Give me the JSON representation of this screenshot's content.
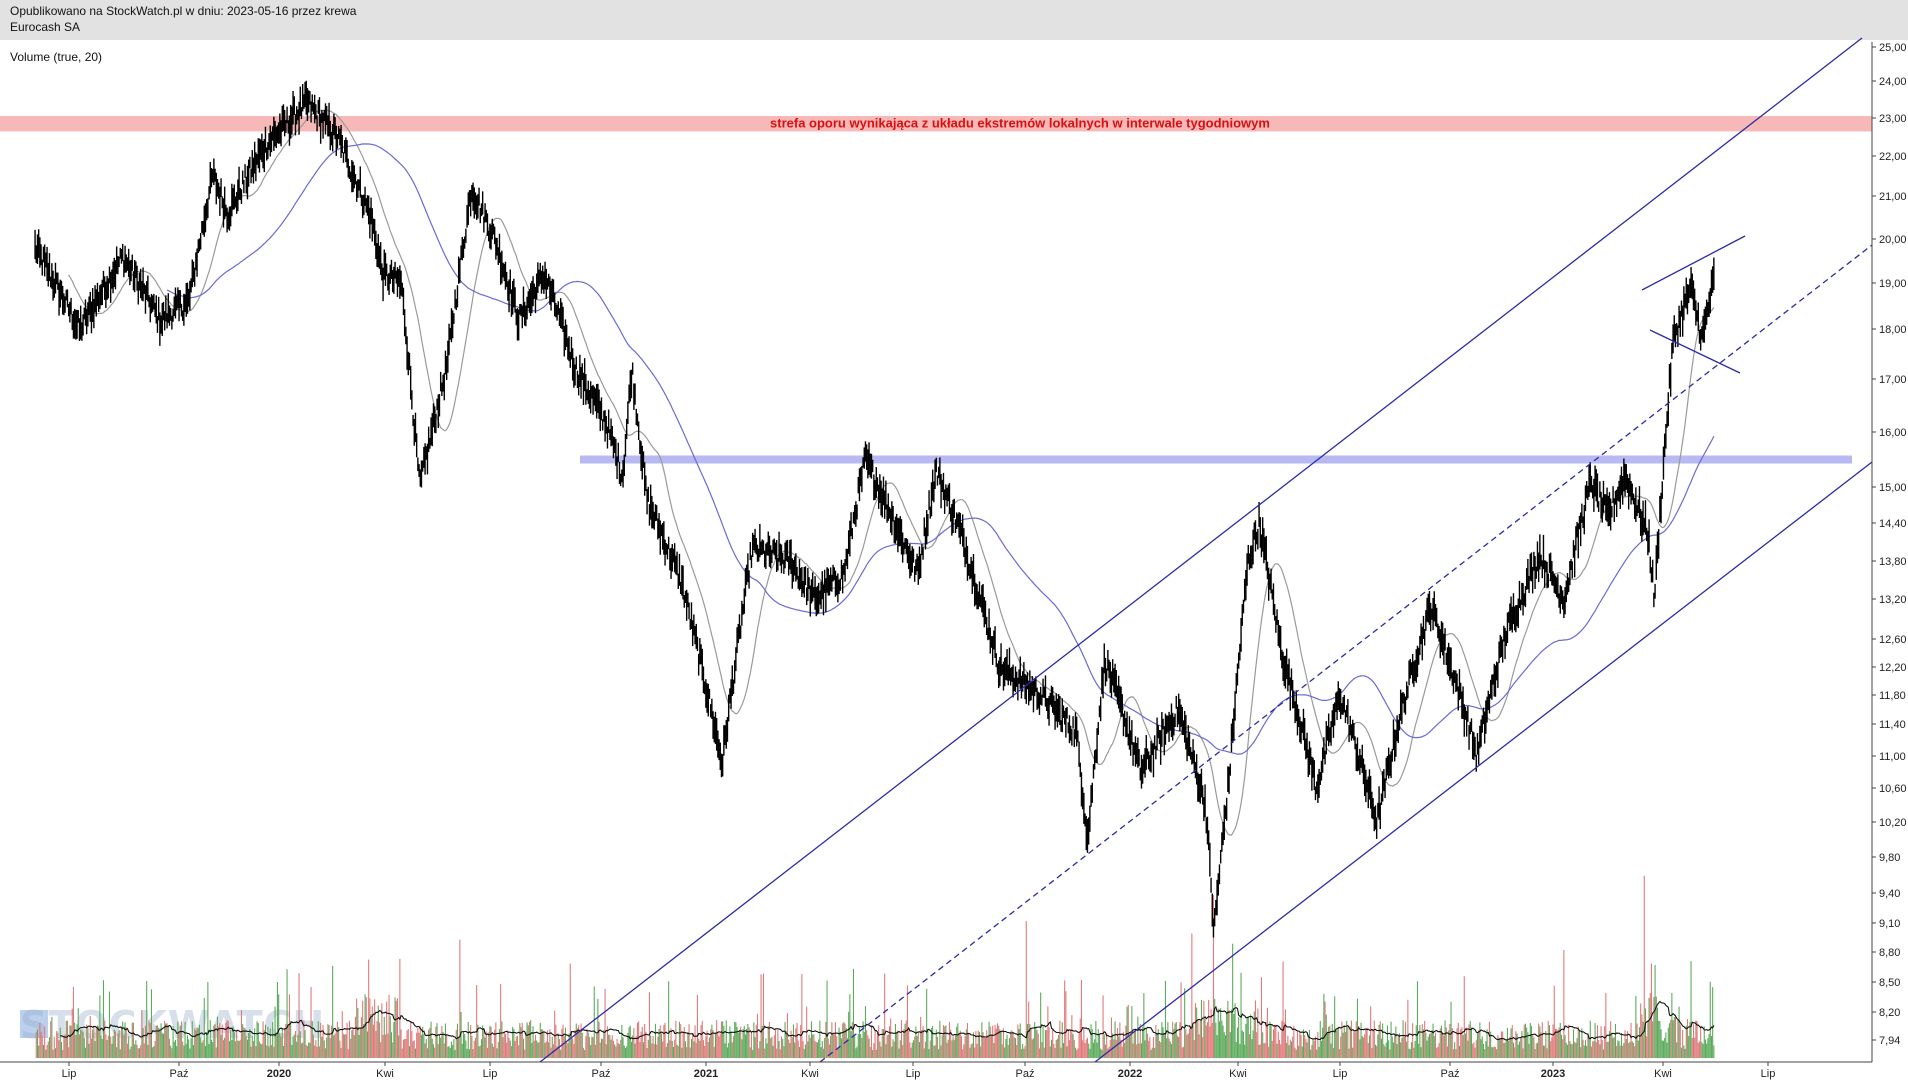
{
  "header": {
    "published_line": "Opublikowano na StockWatch.pl w dniu: 2023-05-16 przez krewa",
    "instrument": "Eurocash SA"
  },
  "indicator_label": "Volume (true, 20)",
  "watermark": "STOCKWATCH",
  "colors": {
    "up_volume": "#5cab5c",
    "down_volume": "#e07a7a",
    "trend_lines": "#2a2aa8",
    "resistance_zone": "#f7b8b8",
    "support_band": "#b8b8f2",
    "annotation_text": "#d81010",
    "ma_short": "#9a9a9a",
    "ma_long": "#6a6ad6"
  },
  "chart_data": {
    "type": "line",
    "instrument": "Eurocash SA",
    "y_axis_ticks": [
      "25,00",
      "24,00",
      "23,00",
      "22,00",
      "21,00",
      "20,00",
      "19,00",
      "18,00",
      "17,00",
      "16,00",
      "15,00",
      "14,40",
      "13,80",
      "13,20",
      "12,60",
      "12,20",
      "11,80",
      "11,40",
      "11,00",
      "10,60",
      "10,20",
      "9,80",
      "9,40",
      "9,10",
      "8,80",
      "8,50",
      "8,20",
      "7,94"
    ],
    "x_axis_ticks": [
      {
        "label": "Lip",
        "bold": false
      },
      {
        "label": "Paź",
        "bold": false
      },
      {
        "label": "2020",
        "bold": true
      },
      {
        "label": "Kwi",
        "bold": false
      },
      {
        "label": "Lip",
        "bold": false
      },
      {
        "label": "Paź",
        "bold": false
      },
      {
        "label": "2021",
        "bold": true
      },
      {
        "label": "Kwi",
        "bold": false
      },
      {
        "label": "Lip",
        "bold": false
      },
      {
        "label": "Paź",
        "bold": false
      },
      {
        "label": "2022",
        "bold": true
      },
      {
        "label": "Kwi",
        "bold": false
      },
      {
        "label": "Lip",
        "bold": false
      },
      {
        "label": "Paź",
        "bold": false
      },
      {
        "label": "2023",
        "bold": true
      },
      {
        "label": "Kwi",
        "bold": false
      },
      {
        "label": "Lip",
        "bold": false
      }
    ],
    "price_series": {
      "name": "Eurocash SA",
      "dates": [
        "2019-06-01",
        "2019-07-10",
        "2019-08-15",
        "2019-09-15",
        "2019-10-10",
        "2019-11-01",
        "2019-11-15",
        "2019-12-20",
        "2020-01-25",
        "2020-02-20",
        "2020-03-20",
        "2020-03-30",
        "2020-04-15",
        "2020-05-01",
        "2020-05-25",
        "2020-06-15",
        "2020-07-05",
        "2020-07-25",
        "2020-08-15",
        "2020-09-10",
        "2020-10-05",
        "2020-10-20",
        "2020-10-28",
        "2020-11-10",
        "2020-12-10",
        "2021-01-15",
        "2021-02-10",
        "2021-03-15",
        "2021-04-05",
        "2021-05-01",
        "2021-05-20",
        "2021-06-20",
        "2021-07-05",
        "2021-07-20",
        "2021-08-10",
        "2021-09-10",
        "2021-10-15",
        "2021-11-15",
        "2021-11-25",
        "2021-12-10",
        "2022-01-10",
        "2022-02-10",
        "2022-03-05",
        "2022-03-12",
        "2022-03-25",
        "2022-04-10",
        "2022-04-20",
        "2022-05-10",
        "2022-06-10",
        "2022-07-01",
        "2022-08-01",
        "2022-08-20",
        "2022-09-15",
        "2022-10-10",
        "2022-10-25",
        "2022-11-20",
        "2022-12-20",
        "2023-01-10",
        "2023-02-01",
        "2023-02-15",
        "2023-03-01",
        "2023-03-20",
        "2023-03-25",
        "2023-04-10",
        "2023-04-25",
        "2023-05-05",
        "2023-05-16"
      ],
      "values": [
        19.8,
        18.0,
        19.6,
        18.2,
        18.6,
        21.5,
        20.6,
        22.3,
        23.4,
        22.5,
        20.5,
        19.2,
        19.0,
        15.0,
        17.3,
        21.2,
        20.0,
        18.2,
        19.2,
        17.2,
        16.2,
        15.2,
        17.2,
        14.8,
        13.5,
        10.9,
        14.0,
        13.8,
        13.2,
        13.6,
        15.5,
        14.2,
        13.6,
        15.3,
        14.2,
        12.2,
        11.8,
        11.3,
        10.0,
        12.3,
        10.8,
        11.6,
        10.4,
        9.0,
        10.8,
        13.8,
        14.4,
        12.4,
        10.6,
        11.8,
        10.2,
        11.5,
        13.1,
        11.8,
        11.0,
        12.7,
        13.9,
        13.2,
        15.1,
        14.5,
        15.2,
        14.2,
        13.2,
        17.8,
        18.9,
        17.8,
        19.2
      ]
    },
    "volume": {
      "name": "Volume (true, 20)",
      "note": "bars at bottom, green = up day, red = down day, black line = moving average"
    },
    "annotations": [
      {
        "text": "strefa oporu wynikająca z układu ekstremów lokalnych w interwale tygodniowym",
        "type": "resistance_zone",
        "y_range": [
          22.7,
          23.0
        ]
      },
      {
        "type": "horizontal_band",
        "y": 15.5
      }
    ],
    "grid": false,
    "legend": "none"
  }
}
